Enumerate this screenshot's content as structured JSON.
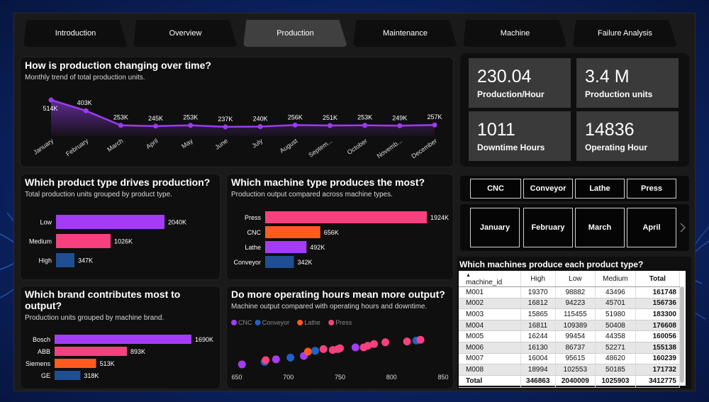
{
  "tabs": [
    {
      "label": "Introduction",
      "active": false
    },
    {
      "label": "Overview",
      "active": false
    },
    {
      "label": "Production",
      "active": true
    },
    {
      "label": "Maintenance",
      "active": false
    },
    {
      "label": "Machine",
      "active": false
    },
    {
      "label": "Failure Analysis",
      "active": false
    }
  ],
  "trend": {
    "title": "How is production changing over time?",
    "subtitle": "Monthly trend of total production units.",
    "value_labels": [
      "514K",
      "403K",
      "253K",
      "245K",
      "253K",
      "237K",
      "240K",
      "256K",
      "251K",
      "253K",
      "249K",
      "257K"
    ]
  },
  "product_type": {
    "title": "Which product type drives production?",
    "subtitle": "Total production units grouped by product type.",
    "value_labels": [
      "2040K",
      "1026K",
      "347K"
    ]
  },
  "machine_type": {
    "title": "Which machine type produces the most?",
    "subtitle": "Production output compared across machine types.",
    "value_labels": [
      "1924K",
      "656K",
      "492K",
      "342K"
    ]
  },
  "brand": {
    "title": "Which brand contributes most to output?",
    "subtitle": "Production units grouped by machine brand.",
    "value_labels": [
      "1690K",
      "893K",
      "513K",
      "318K"
    ]
  },
  "scatter": {
    "title": "Do more operating hours mean more output?",
    "subtitle": "Machine output compared with operating hours and downtime."
  },
  "chart_data": [
    {
      "type": "area",
      "x": [
        "January",
        "February",
        "March",
        "April",
        "May",
        "June",
        "July",
        "August",
        "Septem...",
        "October",
        "Novemb...",
        "December"
      ],
      "values": [
        514,
        403,
        253,
        245,
        253,
        237,
        240,
        256,
        251,
        253,
        249,
        257
      ],
      "unit": "K",
      "color": "#9b3cf0"
    },
    {
      "type": "bar",
      "categories": [
        "Low",
        "Medium",
        "High"
      ],
      "values": [
        2040,
        1026,
        347
      ],
      "colors": [
        "#a53cf5",
        "#f6417e",
        "#1e4f92"
      ]
    },
    {
      "type": "bar",
      "categories": [
        "Press",
        "CNC",
        "Lathe",
        "Conveyor"
      ],
      "values": [
        1924,
        656,
        492,
        342
      ],
      "colors": [
        "#f6417e",
        "#ff5a1f",
        "#a53cf5",
        "#1e4f92"
      ]
    },
    {
      "type": "bar",
      "categories": [
        "Bosch",
        "ABB",
        "Siemens",
        "GE"
      ],
      "values": [
        1690,
        893,
        513,
        318
      ],
      "colors": [
        "#a53cf5",
        "#f6417e",
        "#ff5a1f",
        "#1e4f92"
      ]
    },
    {
      "type": "scatter",
      "legend": [
        "CNC",
        "Conveyor",
        "Lathe",
        "Press"
      ],
      "legend_colors": [
        "#a53cf5",
        "#1e62c8",
        "#ff5a1f",
        "#f6417e"
      ],
      "x_ticks": [
        "650",
        "700",
        "750",
        "800",
        "850"
      ],
      "xlim": [
        650,
        850
      ],
      "points": [
        {
          "x": 655,
          "y": 0.1,
          "s": "CNC"
        },
        {
          "x": 677,
          "y": 0.16,
          "s": "Conveyor"
        },
        {
          "x": 678,
          "y": 0.2,
          "s": "Press"
        },
        {
          "x": 688,
          "y": 0.22,
          "s": "CNC"
        },
        {
          "x": 702,
          "y": 0.26,
          "s": "Conveyor"
        },
        {
          "x": 715,
          "y": 0.3,
          "s": "CNC"
        },
        {
          "x": 719,
          "y": 0.4,
          "s": "Lathe"
        },
        {
          "x": 726,
          "y": 0.42,
          "s": "Conveyor"
        },
        {
          "x": 734,
          "y": 0.46,
          "s": "Press"
        },
        {
          "x": 743,
          "y": 0.44,
          "s": "Press"
        },
        {
          "x": 748,
          "y": 0.46,
          "s": "Press"
        },
        {
          "x": 750,
          "y": 0.48,
          "s": "Press"
        },
        {
          "x": 765,
          "y": 0.5,
          "s": "CNC"
        },
        {
          "x": 773,
          "y": 0.5,
          "s": "Press"
        },
        {
          "x": 777,
          "y": 0.54,
          "s": "Press"
        },
        {
          "x": 783,
          "y": 0.58,
          "s": "Press"
        },
        {
          "x": 794,
          "y": 0.62,
          "s": "Press"
        },
        {
          "x": 815,
          "y": 0.64,
          "s": "Press"
        },
        {
          "x": 824,
          "y": 0.66,
          "s": "Conveyor"
        },
        {
          "x": 828,
          "y": 0.68,
          "s": "Press"
        }
      ]
    }
  ],
  "kpis": [
    {
      "value": "230.04",
      "label": "Production/Hour"
    },
    {
      "value": "3.4 M",
      "label": "Production units"
    },
    {
      "value": "1011",
      "label": "Downtime Hours"
    },
    {
      "value": "14836",
      "label": "Operating Hour"
    }
  ],
  "machine_slicer": [
    "CNC",
    "Conveyor",
    "Lathe",
    "Press"
  ],
  "month_slicer": [
    "January",
    "February",
    "March",
    "April"
  ],
  "table": {
    "title": "Which machines produce each product type?",
    "columns": [
      "machine_id",
      "High",
      "Low",
      "Medium",
      "Total"
    ],
    "rows": [
      [
        "M001",
        "19370",
        "98882",
        "43496",
        "161748"
      ],
      [
        "M002",
        "16812",
        "94223",
        "45701",
        "156736"
      ],
      [
        "M003",
        "15865",
        "115455",
        "51980",
        "183300"
      ],
      [
        "M004",
        "16811",
        "109389",
        "50408",
        "176608"
      ],
      [
        "M005",
        "16244",
        "99454",
        "44358",
        "160056"
      ],
      [
        "M006",
        "16130",
        "86737",
        "52271",
        "155138"
      ],
      [
        "M007",
        "16004",
        "95615",
        "48620",
        "160239"
      ],
      [
        "M008",
        "18994",
        "102553",
        "50185",
        "171732"
      ]
    ],
    "total": [
      "Total",
      "346863",
      "2040009",
      "1025903",
      "3412775"
    ]
  }
}
